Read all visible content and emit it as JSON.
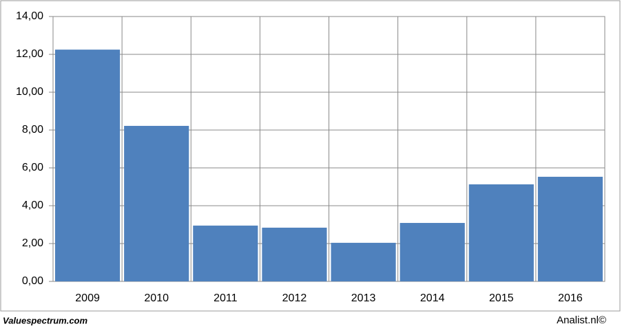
{
  "chart_data": {
    "type": "bar",
    "categories": [
      "2009",
      "2010",
      "2011",
      "2012",
      "2013",
      "2014",
      "2015",
      "2016"
    ],
    "values": [
      12.25,
      8.22,
      2.95,
      2.84,
      2.04,
      3.09,
      5.13,
      5.53
    ],
    "color": "#4f81bd",
    "ylim": [
      0,
      14
    ],
    "yticks": [
      {
        "value": 0,
        "label": "0,00"
      },
      {
        "value": 2,
        "label": "2,00"
      },
      {
        "value": 4,
        "label": "4,00"
      },
      {
        "value": 6,
        "label": "6,00"
      },
      {
        "value": 8,
        "label": "8,00"
      },
      {
        "value": 10,
        "label": "10,00"
      },
      {
        "value": 12,
        "label": "12,00"
      },
      {
        "value": 14,
        "label": "14,00"
      }
    ],
    "grid": true
  },
  "footer": {
    "left": "Valuespectrum.com",
    "right": "Analist.nl©"
  }
}
